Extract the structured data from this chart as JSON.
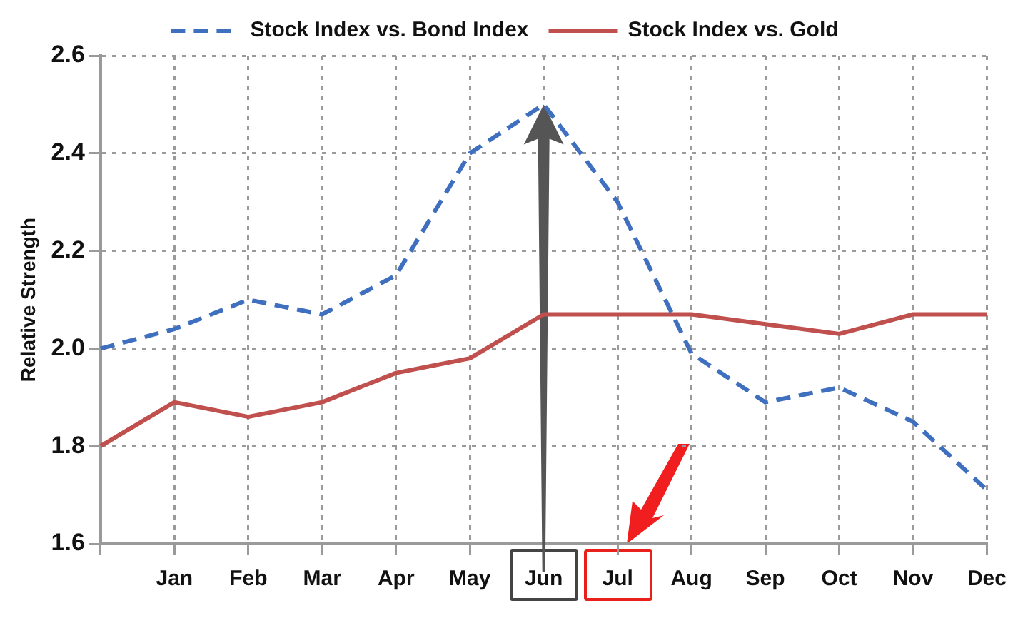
{
  "chart_data": {
    "type": "line",
    "ylabel": "Relative Strength",
    "categories": [
      null,
      "Jan",
      "Feb",
      "Mar",
      "Apr",
      "May",
      "Jun",
      "Jul",
      "Aug",
      "Sep",
      "Oct",
      "Nov",
      "Dec"
    ],
    "series": [
      {
        "name": "Stock Index vs. Bond Index",
        "color": "#3f6fbf",
        "line_style": "dashed",
        "values": [
          2.0,
          2.04,
          2.1,
          2.07,
          2.15,
          2.4,
          2.5,
          2.3,
          1.99,
          1.89,
          1.92,
          1.85,
          1.71
        ]
      },
      {
        "name": "Stock Index vs. Gold",
        "color": "#c0504d",
        "line_style": "solid",
        "values": [
          1.8,
          1.89,
          1.86,
          1.89,
          1.95,
          1.98,
          2.07,
          2.07,
          2.07,
          2.05,
          2.03,
          2.07,
          2.07
        ]
      }
    ],
    "ylim": [
      1.6,
      2.6
    ],
    "yticks": [
      1.6,
      1.8,
      {
        "value": 2,
        "label": "2.0"
      },
      2.2,
      2.4,
      2.6
    ],
    "grid": true,
    "legend": "top",
    "marker": "none"
  }
}
